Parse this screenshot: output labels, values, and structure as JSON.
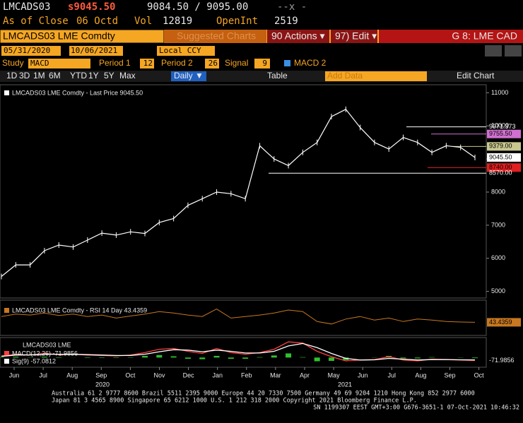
{
  "header": {
    "ticker": "LMCADS03",
    "price": "s9045.50",
    "bid_ask": "9084.50 / 9095.00",
    "flag": "--x -",
    "close_label": "As of Close",
    "close_date": "06 Octd",
    "vol_label": "Vol",
    "vol": "12819",
    "oi_label": "OpenInt",
    "oi": "2519"
  },
  "menu": {
    "security": "LMCADS03 LME Comdty",
    "suggested": "Suggested Charts",
    "actions": "90 Actions ▾",
    "edit": "97) Edit ▾",
    "page": "G 8: LME CAD"
  },
  "range": {
    "start": "05/31/2020",
    "end": "10/06/2021",
    "ccy": "Local CCY"
  },
  "study": {
    "label": "Study",
    "name": "MACD",
    "p1_label": "Period 1",
    "p1": "12",
    "p2_label": "Period 2",
    "p2": "26",
    "sig_label": "Signal",
    "sig": "9",
    "macd2": "MACD 2"
  },
  "toolbar": {
    "periods": [
      "1D",
      "3D",
      "1M",
      "6M",
      "YTD",
      "1Y",
      "5Y",
      "Max"
    ],
    "freq": "Daily ▼",
    "table": "Table",
    "add": "Add Data",
    "edit_chart": "Edit Chart"
  },
  "chart_data": {
    "type": "line",
    "legend": "LMCADS03 LME Comdty - Last Price 9045.50",
    "color": "#ffffff",
    "values": [
      5450,
      5800,
      5800,
      6230,
      6400,
      6340,
      6550,
      6760,
      6700,
      6800,
      6750,
      7080,
      7200,
      7600,
      7800,
      8000,
      7950,
      7800,
      9400,
      9000,
      8800,
      9200,
      9500,
      10280,
      10500,
      9950,
      9500,
      9300,
      9650,
      9500,
      9200,
      9400,
      9350,
      9045.5
    ],
    "ylim": [
      4800,
      11200
    ],
    "yticks": [
      5000,
      6000,
      7000,
      8000,
      9000,
      10000,
      11000
    ],
    "levels": [
      {
        "value": 9971.373,
        "label": "9971.373",
        "color": "#ffffff"
      },
      {
        "value": 9755.5,
        "label": "9755.50",
        "color": "#d070d0"
      },
      {
        "value": 9379,
        "label": "9379.00",
        "color": "#c8c890"
      },
      {
        "value": 9045.5,
        "label": "9045.50",
        "color": "#ffffff"
      },
      {
        "value": 8740,
        "label": "8740.00",
        "color": "#e02020"
      },
      {
        "value": 8570,
        "label": "8570.00",
        "color": "#ffffff"
      }
    ],
    "x_labels": [
      "Jun",
      "Jul",
      "Aug",
      "Sep",
      "Oct",
      "Nov",
      "Dec",
      "Jan",
      "Feb",
      "Mar",
      "Apr",
      "May",
      "Jun",
      "Jul",
      "Aug",
      "Sep",
      "Oct"
    ],
    "years": [
      "2020",
      "2021"
    ],
    "rsi": {
      "legend": "LMCADS03 LME Comdty - RSI 14 Day 43.4359",
      "last": "43.4359",
      "color": "#c87820",
      "ylim": [
        20,
        85
      ],
      "values": [
        55,
        60,
        58,
        62,
        57,
        60,
        55,
        58,
        52,
        56,
        60,
        65,
        62,
        58,
        55,
        70,
        52,
        55,
        58,
        62,
        68,
        65,
        45,
        40,
        50,
        55,
        48,
        52,
        45,
        50,
        48,
        45,
        44,
        43.4359
      ]
    },
    "macd": {
      "legend": "LMCADS03 LME",
      "last": "-71.9856",
      "ylim": [
        -200,
        450
      ],
      "series": [
        {
          "name": "MACD(12,26) -71.9856",
          "color": "#ff4040",
          "values": [
            40,
            80,
            60,
            100,
            70,
            80,
            60,
            50,
            40,
            60,
            120,
            200,
            220,
            150,
            100,
            220,
            120,
            80,
            120,
            200,
            380,
            350,
            150,
            20,
            -80,
            -60,
            -50,
            20,
            -60,
            -80,
            -40,
            -50,
            -60,
            -71.9856
          ]
        },
        {
          "name": "Sig(9) -57.0812",
          "color": "#ffffff",
          "values": [
            30,
            60,
            65,
            80,
            80,
            78,
            70,
            60,
            50,
            52,
            80,
            140,
            190,
            180,
            140,
            180,
            150,
            110,
            110,
            150,
            280,
            340,
            240,
            100,
            -20,
            -60,
            -55,
            -20,
            -40,
            -60,
            -50,
            -50,
            -55,
            -57.0812
          ]
        }
      ]
    }
  },
  "footer": [
    "Australia 61 2 9777 8600 Brazil 5511 2395 9000 Europe 44 20 7330 7500 Germany 49 69 9204 1210 Hong Kong 852 2977 6000",
    "Japan 81 3 4565 8900       Singapore 65 6212 1000       U.S. 1 212 318 2000             Copyright 2021 Bloomberg Finance L.P.",
    "SN 1199307 EEST GMT+3:00 G676-3651-1 07-Oct-2021 10:46:32"
  ]
}
